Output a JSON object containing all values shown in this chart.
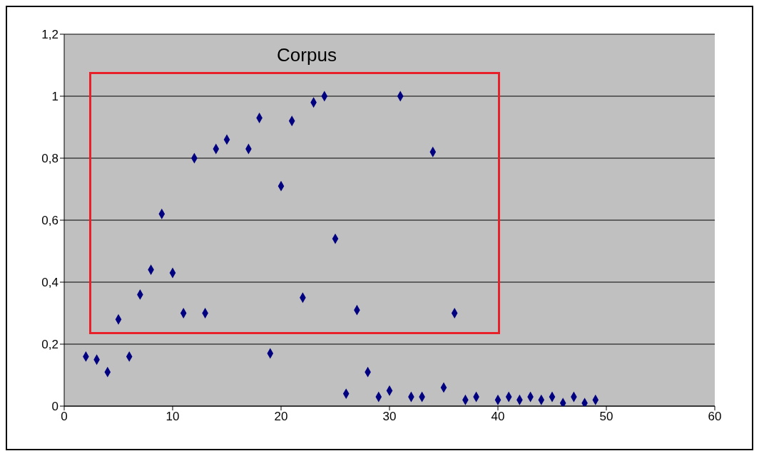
{
  "chart_data": {
    "type": "scatter",
    "title": "Corpus",
    "x": [
      2,
      3,
      4,
      5,
      6,
      7,
      8,
      9,
      10,
      11,
      12,
      13,
      14,
      15,
      17,
      18,
      19,
      20,
      21,
      22,
      23,
      24,
      25,
      26,
      27,
      28,
      29,
      30,
      31,
      32,
      33,
      34,
      35,
      36,
      37,
      38,
      40,
      41,
      42,
      43,
      44,
      45,
      46,
      47,
      48,
      49
    ],
    "values": [
      0.16,
      0.15,
      0.11,
      0.28,
      0.16,
      0.36,
      0.44,
      0.62,
      0.43,
      0.3,
      0.8,
      0.3,
      0.83,
      0.86,
      0.83,
      0.93,
      0.17,
      0.71,
      0.92,
      0.35,
      0.98,
      1.0,
      0.54,
      0.04,
      0.31,
      0.11,
      0.03,
      0.05,
      1.0,
      0.03,
      0.03,
      0.82,
      0.06,
      0.3,
      0.02,
      0.03,
      0.02,
      0.03,
      0.02,
      0.03,
      0.02,
      0.03,
      0.01,
      0.03,
      0.01,
      0.02
    ],
    "color": "#000080",
    "marker": "diamond",
    "xlim": [
      0,
      60
    ],
    "xticks": [
      0,
      10,
      20,
      30,
      40,
      50,
      60
    ],
    "ylim": [
      0,
      1.2
    ],
    "yticks": [
      0,
      {
        "value": 0.2,
        "label": "0,2"
      },
      {
        "value": 0.4,
        "label": "0,4"
      },
      {
        "value": 0.6,
        "label": "0,6"
      },
      {
        "value": 0.8,
        "label": "0,8"
      },
      1,
      {
        "value": 1.2,
        "label": "1,2"
      }
    ],
    "grid": "y",
    "legend": false
  }
}
